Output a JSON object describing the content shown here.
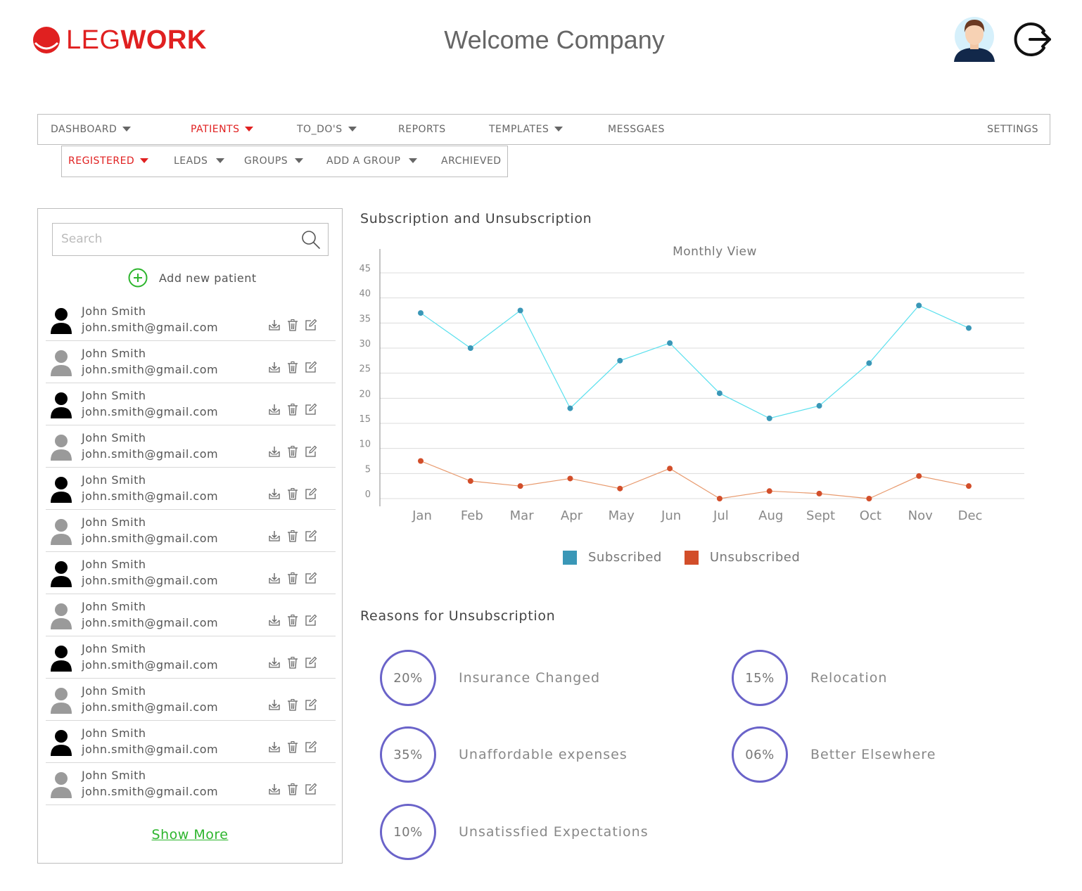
{
  "header": {
    "logo_left": "LEG",
    "logo_right": "WORK",
    "title": "Welcome Company"
  },
  "colors": {
    "brand": "#e02020",
    "subscribed_line": "#5ae0ee",
    "subscribed_point": "#3a97b7",
    "unsubscribed": "#d24e2a",
    "circle": "#6a63c9",
    "link": "#2db52d"
  },
  "nav": [
    {
      "label": "DASHBOARD",
      "caret": true,
      "active": false
    },
    {
      "label": "PATIENTS",
      "caret": true,
      "active": true
    },
    {
      "label": "TO_DO'S",
      "caret": true,
      "active": false
    },
    {
      "label": "REPORTS",
      "caret": false,
      "active": false
    },
    {
      "label": "TEMPLATES",
      "caret": true,
      "active": false
    },
    {
      "label": "MESSGAES",
      "caret": false,
      "active": false
    },
    {
      "label": "SETTINGS",
      "caret": false,
      "active": false
    }
  ],
  "subnav": [
    {
      "label": "REGISTERED",
      "caret": true,
      "active": true
    },
    {
      "label": "LEADS",
      "caret": true,
      "active": false
    },
    {
      "label": "GROUPS",
      "caret": true,
      "active": false
    },
    {
      "label": "ADD A GROUP",
      "caret": true,
      "active": false
    },
    {
      "label": "ARCHIEVED",
      "caret": false,
      "active": false
    }
  ],
  "patients_panel": {
    "search_placeholder": "Search",
    "add_label": "Add new patient",
    "show_more": "Show More",
    "patients": [
      {
        "name": "John Smith",
        "email": "john.smith@gmail.com",
        "avatar": "dark"
      },
      {
        "name": "John Smith",
        "email": "john.smith@gmail.com",
        "avatar": "light"
      },
      {
        "name": "John Smith",
        "email": "john.smith@gmail.com",
        "avatar": "dark"
      },
      {
        "name": "John Smith",
        "email": "john.smith@gmail.com",
        "avatar": "light"
      },
      {
        "name": "John Smith",
        "email": "john.smith@gmail.com",
        "avatar": "dark"
      },
      {
        "name": "John Smith",
        "email": "john.smith@gmail.com",
        "avatar": "light"
      },
      {
        "name": "John Smith",
        "email": "john.smith@gmail.com",
        "avatar": "dark"
      },
      {
        "name": "John Smith",
        "email": "john.smith@gmail.com",
        "avatar": "light"
      },
      {
        "name": "John Smith",
        "email": "john.smith@gmail.com",
        "avatar": "dark"
      },
      {
        "name": "John Smith",
        "email": "john.smith@gmail.com",
        "avatar": "light"
      },
      {
        "name": "John Smith",
        "email": "john.smith@gmail.com",
        "avatar": "dark"
      },
      {
        "name": "John Smith",
        "email": "john.smith@gmail.com",
        "avatar": "light"
      }
    ],
    "row_icons": [
      "download-icon",
      "trash-icon",
      "edit-icon"
    ]
  },
  "chart_section": {
    "title": "Subscription and Unsubscription"
  },
  "chart_data": {
    "type": "line",
    "title": "Monthly View",
    "categories": [
      "Jan",
      "Feb",
      "Mar",
      "Apr",
      "May",
      "Jun",
      "Jul",
      "Aug",
      "Sept",
      "Oct",
      "Nov",
      "Dec"
    ],
    "series": [
      {
        "name": "Subscribed",
        "values": [
          37,
          30,
          37.5,
          18,
          27.5,
          31,
          21,
          16,
          18.5,
          27,
          38.5,
          34
        ]
      },
      {
        "name": "Unsubscribed",
        "values": [
          7.5,
          3.5,
          2.5,
          4,
          2,
          6,
          0,
          1.5,
          1,
          0,
          4.5,
          2.5
        ]
      }
    ],
    "ylim": [
      0,
      45
    ],
    "yticks": [
      0,
      5,
      10,
      15,
      20,
      25,
      30,
      35,
      40,
      45
    ],
    "grid": true,
    "legend": "bottom-center"
  },
  "reasons": {
    "title": "Reasons for Unsubscription",
    "items": [
      {
        "pct": "20%",
        "label": "Insurance Changed"
      },
      {
        "pct": "15%",
        "label": "Relocation"
      },
      {
        "pct": "35%",
        "label": "Unaffordable expenses"
      },
      {
        "pct": "06%",
        "label": "Better Elsewhere"
      },
      {
        "pct": "10%",
        "label": "Unsatissfied Expectations"
      }
    ]
  }
}
